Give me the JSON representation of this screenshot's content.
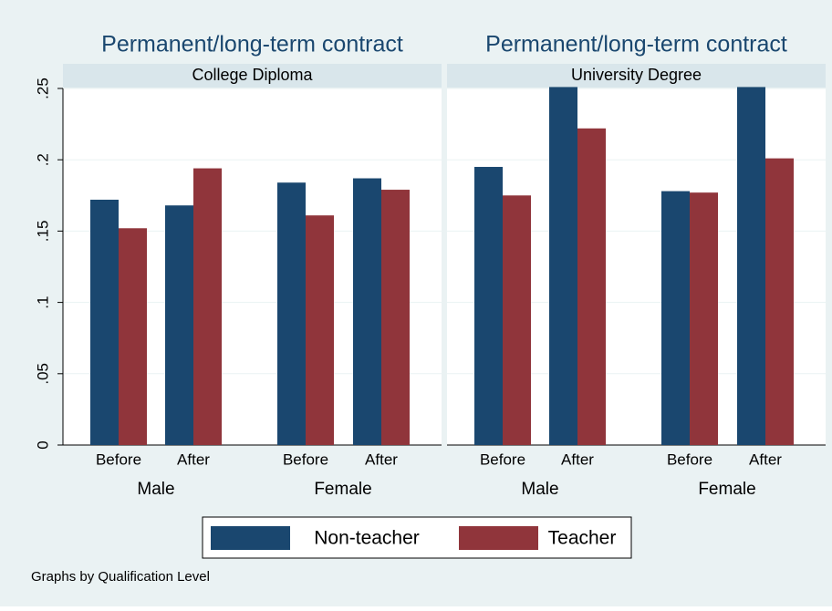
{
  "chart_data": [
    {
      "type": "bar",
      "title": "Permanent/long-term contract",
      "subtitle": "College Diploma",
      "groups": [
        {
          "name": "Male",
          "categories": [
            "Before",
            "After"
          ]
        },
        {
          "name": "Female",
          "categories": [
            "Before",
            "After"
          ]
        }
      ],
      "series": [
        {
          "name": "Non-teacher",
          "color": "#1a476f",
          "values": [
            0.172,
            0.168,
            0.184,
            0.187
          ]
        },
        {
          "name": "Teacher",
          "color": "#90353b",
          "values": [
            0.152,
            0.194,
            0.161,
            0.179
          ]
        }
      ],
      "ylim": [
        0,
        0.25
      ],
      "yticks": [
        0,
        {
          "value": 0.05,
          "label": ".05"
        },
        {
          "value": 0.1,
          "label": ".1"
        },
        {
          "value": 0.15,
          "label": ".15"
        },
        {
          "value": 0.2,
          "label": ".2"
        },
        {
          "value": 0.25,
          "label": ".25"
        }
      ],
      "grid": true
    },
    {
      "type": "bar",
      "title": "Permanent/long-term contract",
      "subtitle": "University Degree",
      "groups": [
        {
          "name": "Male",
          "categories": [
            "Before",
            "After"
          ]
        },
        {
          "name": "Female",
          "categories": [
            "Before",
            "After"
          ]
        }
      ],
      "series": [
        {
          "name": "Non-teacher",
          "color": "#1a476f",
          "values": [
            0.195,
            0.251,
            0.178,
            0.251
          ]
        },
        {
          "name": "Teacher",
          "color": "#90353b",
          "values": [
            0.175,
            0.222,
            0.177,
            0.201
          ]
        }
      ],
      "ylim": [
        0,
        0.25
      ],
      "grid": true
    }
  ],
  "note": "Graphs by Qualification Level"
}
